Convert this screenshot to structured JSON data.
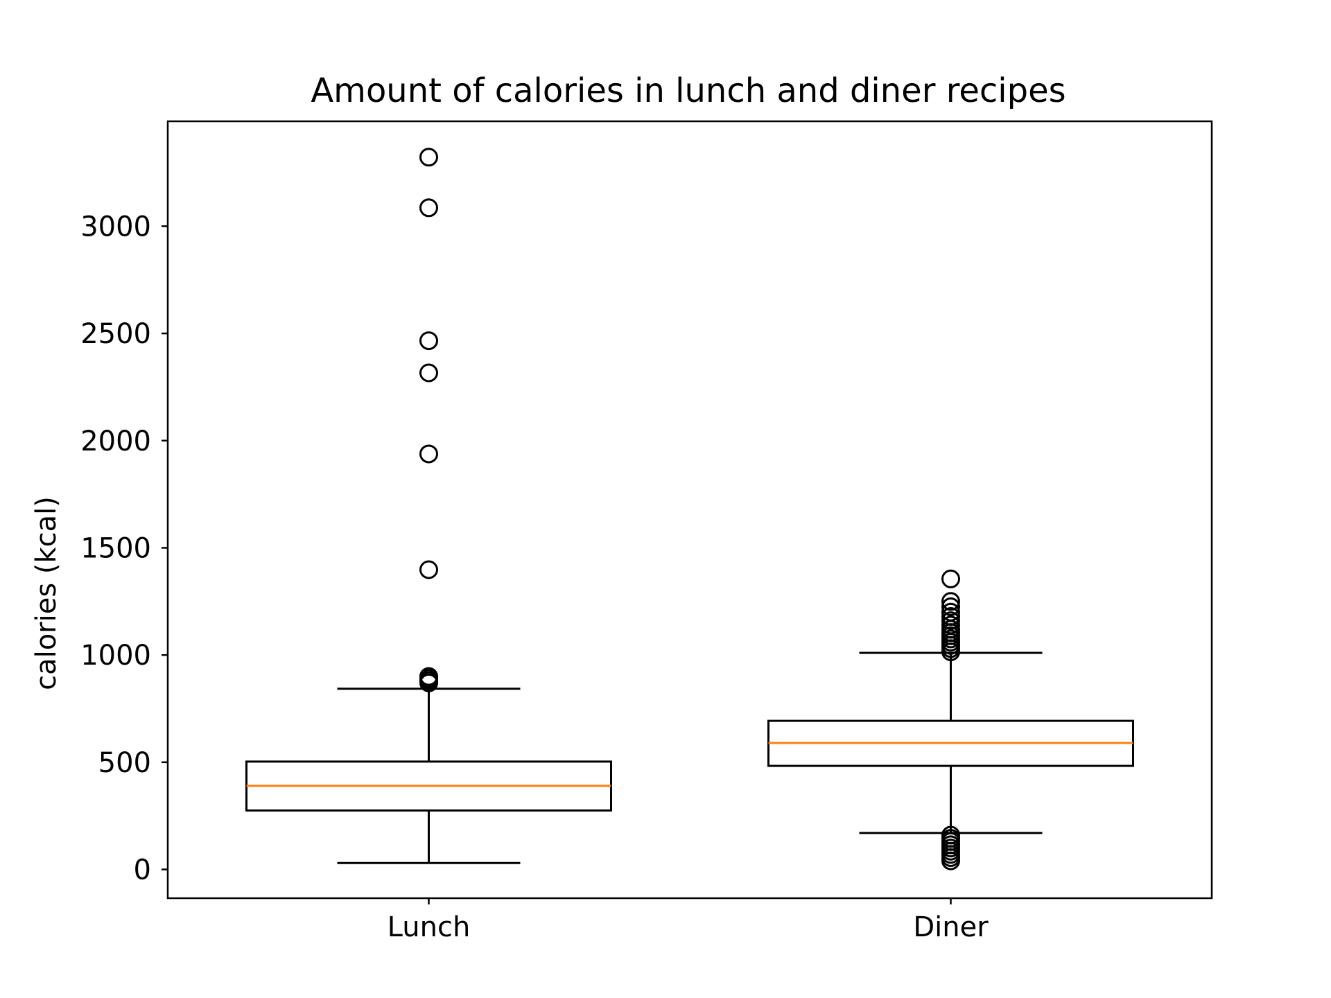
{
  "chart_data": {
    "type": "boxplot",
    "title": "Amount of calories in lunch and diner recipes",
    "xlabel": "",
    "ylabel": "calories (kcal)",
    "categories": [
      "Lunch",
      "Diner"
    ],
    "ylim": [
      -140,
      3480
    ],
    "yticks": [
      0,
      500,
      1000,
      1500,
      2000,
      2500,
      3000
    ],
    "grid": false,
    "colors": {
      "box_edge": "#000000",
      "median": "#ff7f0e",
      "whisker": "#000000",
      "flier_edge": "#000000"
    },
    "boxes": [
      {
        "category": "Lunch",
        "whisker_low": 30,
        "q1": 275,
        "median": 390,
        "q3": 503,
        "whisker_high": 843,
        "outliers": [
          870,
          880,
          890,
          900,
          1398,
          1938,
          2316,
          2466,
          3086,
          3322
        ]
      },
      {
        "category": "Diner",
        "whisker_low": 170,
        "q1": 483,
        "median": 590,
        "q3": 693,
        "whisker_high": 1010,
        "outliers": [
          40,
          55,
          70,
          85,
          100,
          115,
          130,
          145,
          160,
          1015,
          1030,
          1045,
          1060,
          1075,
          1090,
          1105,
          1120,
          1140,
          1160,
          1180,
          1200,
          1225,
          1250,
          1355
        ]
      }
    ]
  }
}
